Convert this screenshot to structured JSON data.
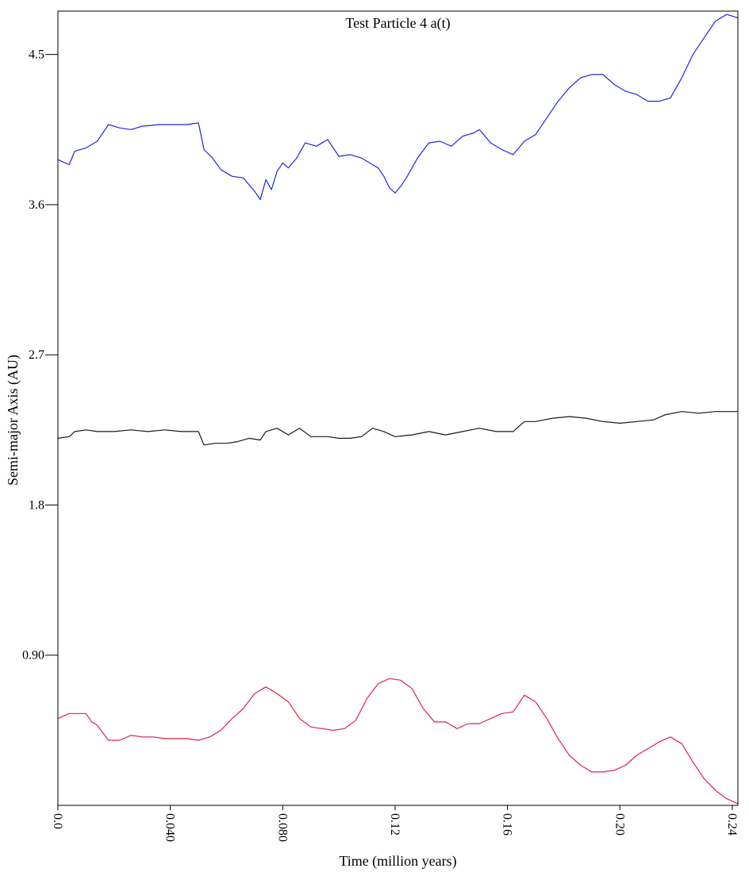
{
  "chart_data": {
    "type": "line",
    "title": "Test Particle 4 a(t)",
    "xlabel": "Time (million years)",
    "ylabel": "Semi-major Axis (AU)",
    "xlim": [
      0.0,
      0.242
    ],
    "ylim": [
      0.0,
      4.76
    ],
    "xticks": [
      {
        "value": 0.0,
        "label": "0.0"
      },
      {
        "value": 0.04,
        "label": "0.040"
      },
      {
        "value": 0.08,
        "label": "0.080"
      },
      {
        "value": 0.12,
        "label": "0.12"
      },
      {
        "value": 0.16,
        "label": "0.16"
      },
      {
        "value": 0.2,
        "label": "0.20"
      },
      {
        "value": 0.24,
        "label": "0.24"
      }
    ],
    "yticks": [
      {
        "value": 0.9,
        "label": "0.90"
      },
      {
        "value": 1.8,
        "label": "1.8"
      },
      {
        "value": 2.7,
        "label": "2.7"
      },
      {
        "value": 3.6,
        "label": "3.6"
      },
      {
        "value": 4.5,
        "label": "4.5"
      }
    ],
    "grid": false,
    "legend": "none",
    "series": [
      {
        "color": "#2323e6",
        "points": [
          [
            0.0,
            3.87
          ],
          [
            0.004,
            3.84
          ],
          [
            0.006,
            3.92
          ],
          [
            0.01,
            3.94
          ],
          [
            0.014,
            3.98
          ],
          [
            0.018,
            4.08
          ],
          [
            0.022,
            4.06
          ],
          [
            0.026,
            4.05
          ],
          [
            0.03,
            4.07
          ],
          [
            0.036,
            4.08
          ],
          [
            0.042,
            4.08
          ],
          [
            0.046,
            4.08
          ],
          [
            0.05,
            4.09
          ],
          [
            0.052,
            3.93
          ],
          [
            0.055,
            3.88
          ],
          [
            0.058,
            3.81
          ],
          [
            0.062,
            3.77
          ],
          [
            0.066,
            3.76
          ],
          [
            0.068,
            3.72
          ],
          [
            0.07,
            3.68
          ],
          [
            0.072,
            3.63
          ],
          [
            0.074,
            3.75
          ],
          [
            0.076,
            3.69
          ],
          [
            0.078,
            3.8
          ],
          [
            0.08,
            3.85
          ],
          [
            0.082,
            3.82
          ],
          [
            0.085,
            3.88
          ],
          [
            0.088,
            3.97
          ],
          [
            0.092,
            3.95
          ],
          [
            0.096,
            3.99
          ],
          [
            0.1,
            3.89
          ],
          [
            0.104,
            3.9
          ],
          [
            0.108,
            3.88
          ],
          [
            0.112,
            3.84
          ],
          [
            0.114,
            3.82
          ],
          [
            0.116,
            3.77
          ],
          [
            0.118,
            3.7
          ],
          [
            0.12,
            3.67
          ],
          [
            0.122,
            3.71
          ],
          [
            0.124,
            3.76
          ],
          [
            0.128,
            3.88
          ],
          [
            0.132,
            3.97
          ],
          [
            0.136,
            3.98
          ],
          [
            0.14,
            3.95
          ],
          [
            0.144,
            4.01
          ],
          [
            0.148,
            4.03
          ],
          [
            0.15,
            4.05
          ],
          [
            0.154,
            3.97
          ],
          [
            0.158,
            3.93
          ],
          [
            0.162,
            3.9
          ],
          [
            0.166,
            3.98
          ],
          [
            0.17,
            4.02
          ],
          [
            0.174,
            4.12
          ],
          [
            0.178,
            4.22
          ],
          [
            0.182,
            4.3
          ],
          [
            0.186,
            4.36
          ],
          [
            0.19,
            4.38
          ],
          [
            0.194,
            4.38
          ],
          [
            0.198,
            4.32
          ],
          [
            0.202,
            4.28
          ],
          [
            0.206,
            4.26
          ],
          [
            0.21,
            4.22
          ],
          [
            0.214,
            4.22
          ],
          [
            0.218,
            4.24
          ],
          [
            0.222,
            4.36
          ],
          [
            0.226,
            4.5
          ],
          [
            0.23,
            4.6
          ],
          [
            0.234,
            4.7
          ],
          [
            0.238,
            4.74
          ],
          [
            0.24,
            4.73
          ],
          [
            0.242,
            4.72
          ]
        ]
      },
      {
        "color": "#1a1a1a",
        "points": [
          [
            0.0,
            2.2
          ],
          [
            0.004,
            2.21
          ],
          [
            0.006,
            2.24
          ],
          [
            0.01,
            2.25
          ],
          [
            0.014,
            2.24
          ],
          [
            0.02,
            2.24
          ],
          [
            0.026,
            2.25
          ],
          [
            0.032,
            2.24
          ],
          [
            0.038,
            2.25
          ],
          [
            0.044,
            2.24
          ],
          [
            0.05,
            2.24
          ],
          [
            0.052,
            2.16
          ],
          [
            0.056,
            2.17
          ],
          [
            0.06,
            2.17
          ],
          [
            0.064,
            2.18
          ],
          [
            0.068,
            2.2
          ],
          [
            0.072,
            2.19
          ],
          [
            0.074,
            2.24
          ],
          [
            0.078,
            2.26
          ],
          [
            0.082,
            2.22
          ],
          [
            0.086,
            2.26
          ],
          [
            0.09,
            2.21
          ],
          [
            0.096,
            2.21
          ],
          [
            0.1,
            2.2
          ],
          [
            0.104,
            2.2
          ],
          [
            0.108,
            2.21
          ],
          [
            0.112,
            2.26
          ],
          [
            0.116,
            2.24
          ],
          [
            0.12,
            2.21
          ],
          [
            0.126,
            2.22
          ],
          [
            0.132,
            2.24
          ],
          [
            0.138,
            2.22
          ],
          [
            0.144,
            2.24
          ],
          [
            0.15,
            2.26
          ],
          [
            0.156,
            2.24
          ],
          [
            0.162,
            2.24
          ],
          [
            0.166,
            2.3
          ],
          [
            0.17,
            2.3
          ],
          [
            0.176,
            2.32
          ],
          [
            0.182,
            2.33
          ],
          [
            0.188,
            2.32
          ],
          [
            0.194,
            2.3
          ],
          [
            0.2,
            2.29
          ],
          [
            0.206,
            2.3
          ],
          [
            0.212,
            2.31
          ],
          [
            0.216,
            2.34
          ],
          [
            0.222,
            2.36
          ],
          [
            0.228,
            2.35
          ],
          [
            0.234,
            2.36
          ],
          [
            0.242,
            2.36
          ]
        ]
      },
      {
        "color": "#e0204a",
        "points": [
          [
            0.0,
            0.52
          ],
          [
            0.004,
            0.55
          ],
          [
            0.008,
            0.55
          ],
          [
            0.01,
            0.55
          ],
          [
            0.012,
            0.5
          ],
          [
            0.014,
            0.48
          ],
          [
            0.018,
            0.39
          ],
          [
            0.022,
            0.39
          ],
          [
            0.026,
            0.42
          ],
          [
            0.03,
            0.41
          ],
          [
            0.034,
            0.41
          ],
          [
            0.038,
            0.4
          ],
          [
            0.042,
            0.4
          ],
          [
            0.046,
            0.4
          ],
          [
            0.05,
            0.39
          ],
          [
            0.054,
            0.41
          ],
          [
            0.058,
            0.45
          ],
          [
            0.062,
            0.52
          ],
          [
            0.066,
            0.58
          ],
          [
            0.07,
            0.67
          ],
          [
            0.074,
            0.71
          ],
          [
            0.078,
            0.67
          ],
          [
            0.082,
            0.62
          ],
          [
            0.086,
            0.52
          ],
          [
            0.09,
            0.47
          ],
          [
            0.094,
            0.46
          ],
          [
            0.098,
            0.45
          ],
          [
            0.102,
            0.46
          ],
          [
            0.106,
            0.51
          ],
          [
            0.11,
            0.64
          ],
          [
            0.114,
            0.73
          ],
          [
            0.118,
            0.76
          ],
          [
            0.122,
            0.75
          ],
          [
            0.126,
            0.7
          ],
          [
            0.13,
            0.58
          ],
          [
            0.134,
            0.5
          ],
          [
            0.138,
            0.5
          ],
          [
            0.142,
            0.46
          ],
          [
            0.146,
            0.49
          ],
          [
            0.15,
            0.49
          ],
          [
            0.154,
            0.52
          ],
          [
            0.158,
            0.55
          ],
          [
            0.162,
            0.56
          ],
          [
            0.166,
            0.66
          ],
          [
            0.17,
            0.62
          ],
          [
            0.174,
            0.52
          ],
          [
            0.178,
            0.4
          ],
          [
            0.182,
            0.3
          ],
          [
            0.186,
            0.24
          ],
          [
            0.19,
            0.2
          ],
          [
            0.194,
            0.2
          ],
          [
            0.198,
            0.21
          ],
          [
            0.202,
            0.24
          ],
          [
            0.206,
            0.3
          ],
          [
            0.21,
            0.34
          ],
          [
            0.214,
            0.38
          ],
          [
            0.218,
            0.41
          ],
          [
            0.222,
            0.37
          ],
          [
            0.226,
            0.26
          ],
          [
            0.23,
            0.16
          ],
          [
            0.234,
            0.09
          ],
          [
            0.238,
            0.04
          ],
          [
            0.242,
            0.01
          ]
        ]
      }
    ]
  }
}
